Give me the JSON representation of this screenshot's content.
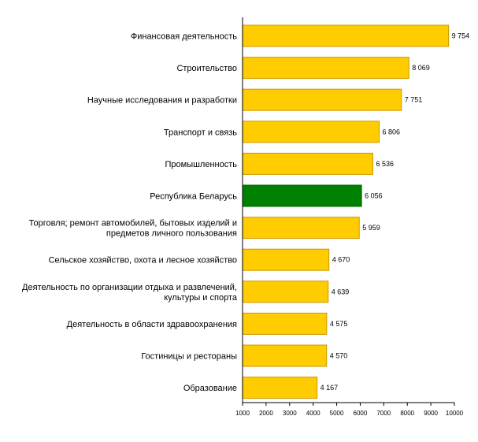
{
  "chart_data": {
    "type": "bar",
    "orientation": "horizontal",
    "title": "",
    "xlabel": "",
    "ylabel": "",
    "xlim": [
      1000,
      10000
    ],
    "x_ticks": [
      1000,
      2000,
      3000,
      4000,
      5000,
      6000,
      7000,
      8000,
      9000,
      10000
    ],
    "grid": false,
    "legend": "none",
    "categories": [
      [
        "Финансовая деятельность"
      ],
      [
        "Строительство"
      ],
      [
        "Научные исследования и разработки"
      ],
      [
        "Транспорт и связь"
      ],
      [
        "Промышленность"
      ],
      [
        "Республика Беларусь"
      ],
      [
        "Торговля; ремонт автомобилей, бытовых изделий и",
        "предметов личного пользования"
      ],
      [
        "Сельское хозяйство, охота и лесное хозяйство"
      ],
      [
        "Деятельность по организации отдыха и развлечений,",
        "культуры и спорта"
      ],
      [
        "Деятельность в области здравоохранения"
      ],
      [
        "Гостиницы и рестораны"
      ],
      [
        "Образование"
      ]
    ],
    "values": [
      9754,
      8069,
      7751,
      6806,
      6536,
      6056,
      5959,
      4670,
      4639,
      4575,
      4570,
      4167
    ],
    "value_labels": [
      "9 754",
      "8 069",
      "7 751",
      "6 806",
      "6 536",
      "6 056",
      "5 959",
      "4 670",
      "4 639",
      "4 575",
      "4 570",
      "4 167"
    ],
    "bar_color": "#FFCC00",
    "bar_edge_color": "#CC9900",
    "highlight_index": 5,
    "highlight_color": "#008000",
    "highlight_edge_color": "#006400"
  }
}
